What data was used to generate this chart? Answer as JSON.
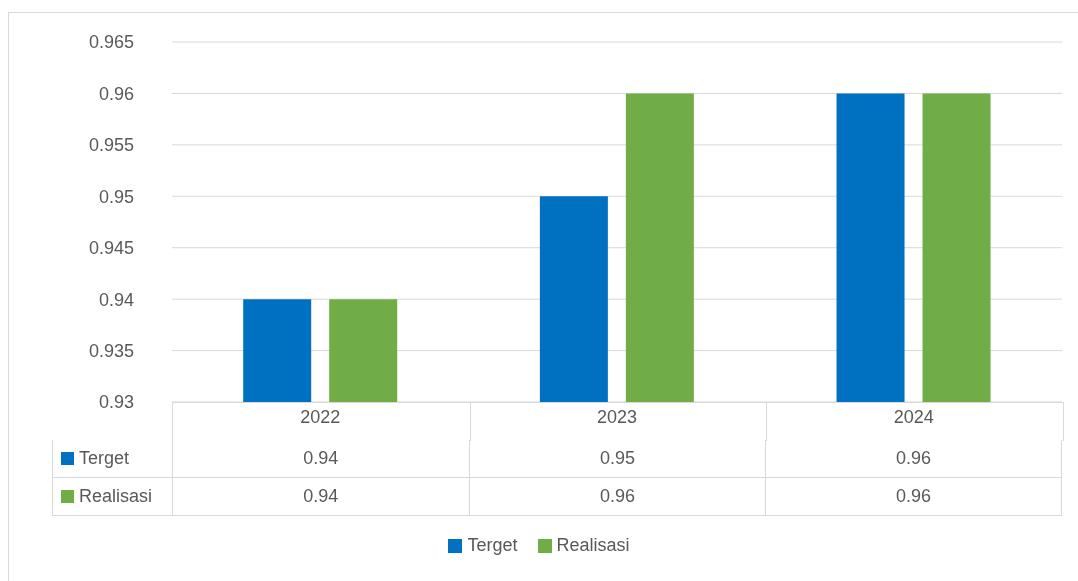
{
  "chart_data": {
    "type": "bar",
    "categories": [
      "2022",
      "2023",
      "2024"
    ],
    "series": [
      {
        "name": "Terget",
        "color": "#0070c0",
        "values": [
          0.94,
          0.95,
          0.96
        ]
      },
      {
        "name": "Realisasi",
        "color": "#70ad47",
        "values": [
          0.94,
          0.96,
          0.96
        ]
      }
    ],
    "ylim": [
      0.93,
      0.965
    ],
    "yticks": [
      0.93,
      0.935,
      0.94,
      0.945,
      0.95,
      0.955,
      0.96,
      0.965
    ],
    "grid": "y",
    "legend": "bottom",
    "data_labels": true
  }
}
